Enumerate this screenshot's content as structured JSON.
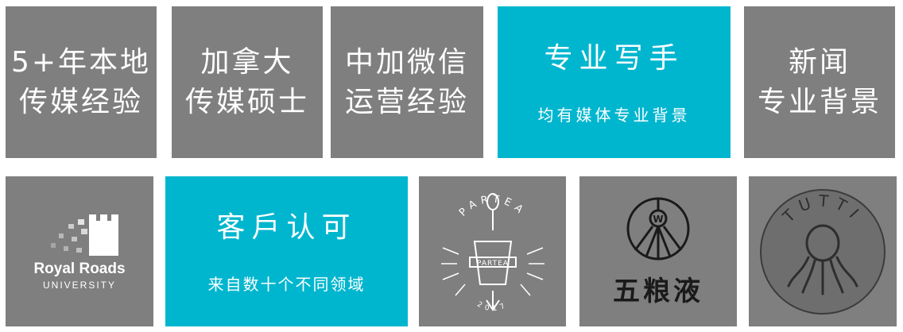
{
  "tiles": {
    "local_media": {
      "line1": "5+年本地",
      "line2": "传媒经验"
    },
    "masters": {
      "line1": "加拿大",
      "line2": "传媒硕士"
    },
    "wechat": {
      "line1": "中加微信",
      "line2": "运营经验"
    },
    "writers": {
      "title": "专业写手",
      "subtitle": "均有媒体专业背景"
    },
    "news": {
      "line1": "新闻",
      "line2": "专业背景"
    },
    "clients": {
      "title": "客戶认可",
      "subtitle": "来自数十个不同领域"
    }
  },
  "logos": {
    "royal_roads": {
      "name": "Royal Roads",
      "sub": "UNIVERSITY"
    },
    "partea": {
      "arc": "PARTEA",
      "banner": "PARTEA",
      "year": "2017"
    },
    "wuliangye": {
      "text": "五粮液",
      "badge": "W"
    },
    "tutti": {
      "text": "TUTTI"
    }
  },
  "colors": {
    "gray_tile": "#7f7f7f",
    "cyan_tile": "#00b6cf",
    "text": "#ffffff"
  }
}
